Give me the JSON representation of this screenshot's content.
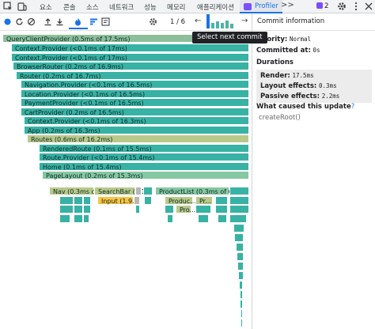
{
  "tabs": [
    {
      "label": "요소"
    },
    {
      "label": "콘솔"
    },
    {
      "label": "소스"
    },
    {
      "label": "네트워크"
    },
    {
      "label": "성능"
    },
    {
      "label": "메모리"
    },
    {
      "label": "애플리케이션"
    }
  ],
  "active_tab": {
    "label": "Profiler"
  },
  "overflow": ">>",
  "messages": {
    "count": "2"
  },
  "toolbar": {
    "counter": "1 / 6",
    "prev": "←",
    "next": "→"
  },
  "tooltip": "Select next commit",
  "flamegraph": {
    "bars": [
      {
        "label": "QueryClientProvider (0.5ms of 17.5ms)",
        "color": "sel"
      },
      {
        "label": "Context.Provider (<0.1ms of 17ms)",
        "color": "teal"
      },
      {
        "label": "Context.Provider (<0.1ms of 17ms)",
        "color": "teal"
      },
      {
        "label": "BrowserRouter (0.2ms of 16.9ms)",
        "color": "teal"
      },
      {
        "label": "Router (0.2ms of 16.7ms)",
        "color": "teal"
      },
      {
        "label": "Navigation.Provider (<0.1ms of 16.5ms)",
        "color": "teal"
      },
      {
        "label": "Location.Provider (<0.1ms of 16.5ms)",
        "color": "teal"
      },
      {
        "label": "PaymentProvider (<0.1ms of 16.5ms)",
        "color": "teal"
      },
      {
        "label": "CartProvider (0.2ms of 16.5ms)",
        "color": "teal"
      },
      {
        "label": "Context.Provider (<0.1ms of 16.3ms)",
        "color": "teal"
      },
      {
        "label": "App (0.2ms of 16.3ms)",
        "color": "teal"
      },
      {
        "label": "Routes (0.6ms of 16.2ms)",
        "color": "olive"
      },
      {
        "label": "RenderedRoute (0.1ms of 15.5ms)",
        "color": "teal"
      },
      {
        "label": "Route.Provider (<0.1ms of 15.4ms)",
        "color": "teal"
      },
      {
        "label": "Home (0.1ms of 15.4ms)",
        "color": "teal"
      },
      {
        "label": "PageLayout (0.2ms of 15.3ms)",
        "color": "green"
      },
      {
        "label": "Nav (0.3ms of ...",
        "color": "olive"
      },
      {
        "label": "SearchBar (0.1...",
        "color": "olive"
      },
      {
        "label": "ProductList (0.3ms of 6ms)",
        "color": "green"
      },
      {
        "label": "Input (1.9...",
        "color": "yellow"
      },
      {
        "label": "Produc...",
        "color": "olive"
      },
      {
        "label": "Pr...",
        "color": "olive"
      },
      {
        "label": "Pro...",
        "color": "olive"
      }
    ]
  },
  "side_panel": {
    "title": "Commit information",
    "priority_label": "Priority:",
    "priority_value": "Normal",
    "committed_label": "Committed at:",
    "committed_value": "0s",
    "durations_title": "Durations",
    "render_label": "Render:",
    "render_value": "17.5ms",
    "layout_label": "Layout effects:",
    "layout_value": "0.3ms",
    "passive_label": "Passive effects:",
    "passive_value": "2.2ms",
    "cause_title": "What caused this update",
    "cause_q": "?",
    "cause_item": "createRoot()"
  },
  "colors": {
    "accent": "#1a73e8",
    "profiler_badge": "#7c4dff",
    "teal": "#38b2a4",
    "selected": "#8cbf9a",
    "olive": "#b8c98a",
    "yellow": "#f9c443"
  }
}
